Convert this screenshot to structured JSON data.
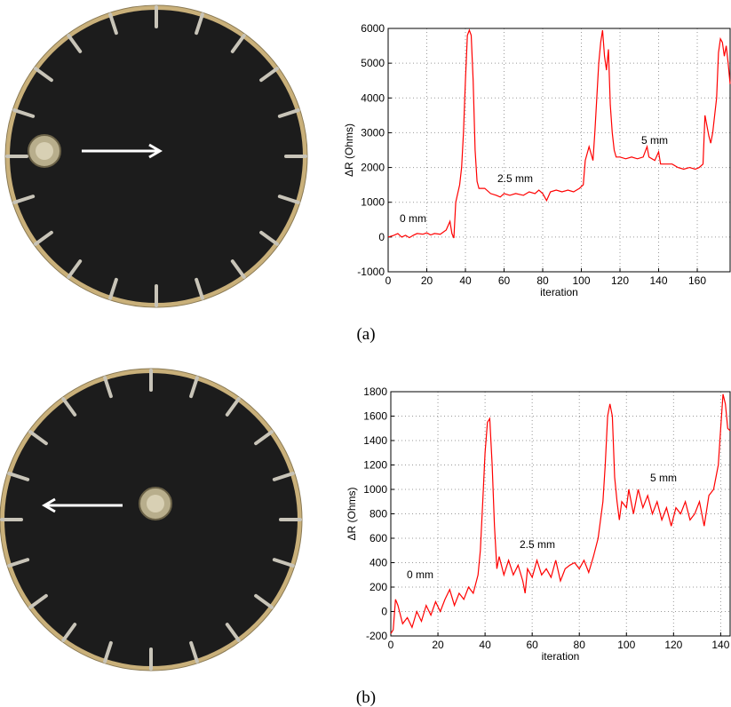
{
  "captions": [
    "(a)",
    "(b)"
  ],
  "chart_data": [
    {
      "type": "line",
      "xlabel": "iteration",
      "ylabel": "ΔR (Ohms)",
      "annotations": [
        "0 mm",
        "2.5 mm",
        "5 mm"
      ],
      "xlim": [
        0,
        177
      ],
      "ylim": [
        -1000,
        6000
      ],
      "xticks": [
        0,
        20,
        40,
        60,
        80,
        100,
        120,
        140,
        160
      ],
      "yticks": [
        -1000,
        0,
        1000,
        2000,
        3000,
        4000,
        5000,
        6000
      ],
      "grid": true,
      "color": "#ff0000",
      "x": [
        0,
        3,
        5,
        7,
        9,
        11,
        13,
        15,
        18,
        20,
        22,
        24,
        27,
        30,
        32,
        33,
        34,
        35,
        37,
        38,
        39,
        40,
        41,
        42,
        43,
        44,
        45,
        46,
        47,
        50,
        53,
        56,
        58,
        60,
        63,
        66,
        70,
        73,
        76,
        78,
        80,
        82,
        84,
        87,
        90,
        93,
        96,
        99,
        101,
        102,
        104,
        106,
        107,
        108,
        109,
        110,
        111,
        112,
        113,
        114,
        115,
        116,
        117,
        118,
        120,
        123,
        126,
        129,
        132,
        134,
        135,
        138,
        140,
        141,
        144,
        147,
        150,
        153,
        156,
        159,
        161,
        163,
        164,
        165,
        166,
        167,
        168,
        170,
        171,
        172,
        173,
        174,
        175,
        176,
        177
      ],
      "values": [
        0,
        50,
        100,
        0,
        50,
        -20,
        50,
        100,
        80,
        120,
        60,
        100,
        80,
        200,
        450,
        100,
        -30,
        1000,
        1500,
        2000,
        3000,
        4500,
        5800,
        5950,
        5800,
        4500,
        2500,
        1600,
        1400,
        1400,
        1250,
        1200,
        1150,
        1250,
        1200,
        1250,
        1200,
        1300,
        1250,
        1350,
        1250,
        1050,
        1300,
        1350,
        1300,
        1350,
        1300,
        1400,
        1500,
        2200,
        2600,
        2200,
        3000,
        4000,
        5000,
        5600,
        5950,
        5200,
        4800,
        5400,
        3800,
        3000,
        2500,
        2300,
        2300,
        2250,
        2300,
        2250,
        2300,
        2600,
        2300,
        2200,
        2450,
        2100,
        2100,
        2100,
        2000,
        1950,
        2000,
        1950,
        2000,
        2100,
        3500,
        3200,
        2900,
        2700,
        3000,
        4000,
        5300,
        5700,
        5600,
        5200,
        5500,
        5000,
        4400
      ]
    },
    {
      "type": "line",
      "xlabel": "iteration",
      "ylabel": "ΔR (Ohms)",
      "annotations": [
        "0 mm",
        "2.5 mm",
        "5 mm"
      ],
      "xlim": [
        0,
        144
      ],
      "ylim": [
        -200,
        1800
      ],
      "xticks": [
        0,
        20,
        40,
        60,
        80,
        100,
        120,
        140
      ],
      "yticks": [
        -200,
        0,
        200,
        400,
        600,
        800,
        1000,
        1200,
        1400,
        1600,
        1800
      ],
      "grid": true,
      "color": "#ff0000",
      "x": [
        0,
        1,
        2,
        3,
        5,
        7,
        9,
        11,
        13,
        15,
        17,
        19,
        21,
        23,
        25,
        27,
        29,
        31,
        33,
        35,
        37,
        38,
        39,
        40,
        41,
        42,
        43,
        44,
        45,
        46,
        48,
        50,
        52,
        54,
        56,
        57,
        58,
        60,
        62,
        64,
        66,
        68,
        70,
        72,
        74,
        76,
        78,
        80,
        82,
        84,
        86,
        88,
        90,
        91,
        92,
        93,
        94,
        95,
        96,
        97,
        98,
        100,
        101,
        103,
        105,
        107,
        109,
        111,
        113,
        115,
        117,
        119,
        121,
        123,
        125,
        127,
        129,
        131,
        133,
        135,
        137,
        139,
        140,
        141,
        142,
        143,
        144
      ],
      "values": [
        -180,
        -150,
        100,
        50,
        -100,
        -50,
        -130,
        0,
        -80,
        50,
        -30,
        80,
        0,
        100,
        180,
        50,
        150,
        100,
        200,
        150,
        300,
        500,
        900,
        1300,
        1550,
        1580,
        1200,
        700,
        350,
        450,
        300,
        420,
        300,
        380,
        250,
        150,
        350,
        280,
        420,
        300,
        350,
        280,
        420,
        250,
        350,
        380,
        400,
        350,
        420,
        320,
        450,
        600,
        900,
        1200,
        1600,
        1700,
        1600,
        1100,
        900,
        750,
        900,
        850,
        1000,
        800,
        1000,
        850,
        950,
        800,
        900,
        750,
        850,
        700,
        850,
        800,
        900,
        750,
        800,
        900,
        700,
        950,
        1000,
        1200,
        1500,
        1780,
        1700,
        1500,
        1480
      ]
    }
  ]
}
